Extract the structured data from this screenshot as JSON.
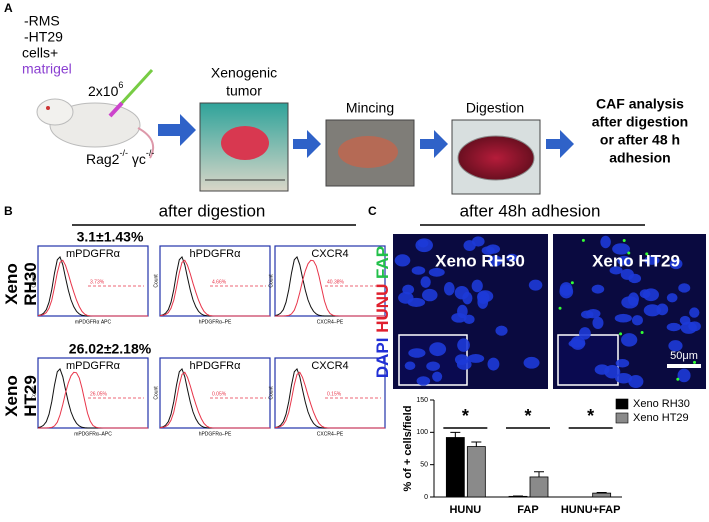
{
  "panel_a": {
    "label": "A",
    "cells": [
      "-RMS",
      "-HT29",
      "cells+",
      "matrigel"
    ],
    "dose": {
      "base": "2x10",
      "exp": "6"
    },
    "mouse": {
      "a": "Rag2",
      "a_exp": "-/-",
      "b": " γc",
      "b_exp": "-/-"
    },
    "steps": [
      "Xenogenic",
      "tumor",
      "Mincing",
      "Digestion"
    ],
    "result": [
      "CAF analysis",
      "after digestion",
      "or after 48 h",
      "adhesion"
    ]
  },
  "panel_b": {
    "label": "B",
    "title": "after digestion",
    "rows": [
      {
        "name": [
          "Xeno",
          "RH30"
        ],
        "summary": "3.1±1.43%",
        "plots": [
          {
            "marker": "mPDGFRα",
            "percent": "3.73%",
            "axis": "mPDGFRα APC"
          },
          {
            "marker": "hPDGFRα",
            "percent": "4.66%",
            "axis": "hPDGFRα–PE"
          },
          {
            "marker": "CXCR4",
            "percent": "40.38%",
            "axis": "CXCR4–PE"
          }
        ]
      },
      {
        "name": [
          "Xeno",
          "HT29"
        ],
        "summary": "26.02±2.18%",
        "plots": [
          {
            "marker": "mPDGFRα",
            "percent": "26.05%",
            "axis": "mPDGFRα–APC"
          },
          {
            "marker": "hPDGFRα",
            "percent": "0.05%",
            "axis": "hPDGFRα–PE"
          },
          {
            "marker": "CXCR4",
            "percent": "0.15%",
            "axis": "CXCR4–PE"
          }
        ]
      }
    ],
    "count_label": "Count"
  },
  "panel_c": {
    "label": "C",
    "title": "after 48h adhesion",
    "stain": [
      "DAPI",
      "HUNU",
      "FAP"
    ],
    "images": [
      "Xeno RH30",
      "Xeno HT29"
    ],
    "scale": "50μm"
  },
  "chart_data": {
    "type": "bar",
    "y_label": "% of + cells/field",
    "categories": [
      "HUNU",
      "FAP",
      "HUNU+FAP"
    ],
    "series": [
      {
        "name": "Xeno RH30",
        "color": "#000000",
        "values": [
          92,
          1,
          0
        ],
        "errors": [
          8,
          0.5,
          0
        ]
      },
      {
        "name": "Xeno HT29",
        "color": "#8a8a8a",
        "values": [
          78,
          31,
          6
        ],
        "errors": [
          7,
          8,
          1
        ]
      }
    ],
    "significance": [
      "*",
      "*",
      "*"
    ],
    "ylim": [
      0,
      150
    ],
    "yticks": [
      0,
      50,
      100,
      150
    ],
    "legend": "top-right"
  }
}
